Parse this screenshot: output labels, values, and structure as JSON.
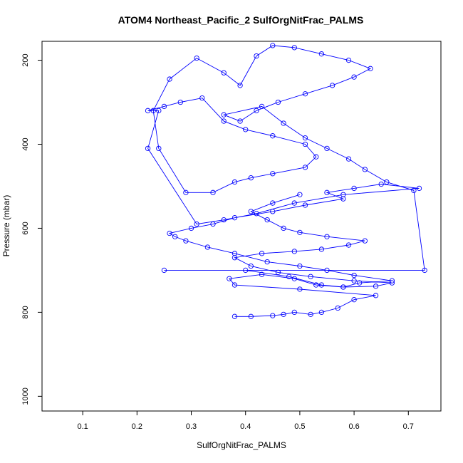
{
  "chart_data": {
    "type": "line",
    "title": "ATOM4 Northeast_Pacific_2 SulfOrgNitFrac_PALMS",
    "xlabel": "SulfOrgNitFrac_PALMS",
    "ylabel": "Pressure (mbar)",
    "xlim": [
      0.025,
      0.76
    ],
    "ylim": [
      1035,
      155
    ],
    "y_inverted": true,
    "x_ticks": [
      0.1,
      0.2,
      0.3,
      0.4,
      0.5,
      0.6,
      0.7
    ],
    "x_tick_labels": [
      "0.1",
      "0.2",
      "0.3",
      "0.4",
      "0.5",
      "0.6",
      "0.7"
    ],
    "y_ticks": [
      200,
      400,
      600,
      800,
      1000
    ],
    "y_tick_labels": [
      "200",
      "400",
      "600",
      "800",
      "1000"
    ],
    "grid": false,
    "legend": "none",
    "series": [
      {
        "color": "#0000ff",
        "marker": "open-circle",
        "x": [
          0.38,
          0.41,
          0.45,
          0.47,
          0.49,
          0.52,
          0.54,
          0.57,
          0.6,
          0.64,
          0.5,
          0.38,
          0.37,
          0.43,
          0.49,
          0.53,
          0.58,
          0.61,
          0.67,
          0.6,
          0.55,
          0.5,
          0.44,
          0.38,
          0.33,
          0.29,
          0.27,
          0.26,
          0.3,
          0.34,
          0.38,
          0.45,
          0.51,
          0.58,
          0.55,
          0.6,
          0.65,
          0.72,
          0.58,
          0.49,
          0.42,
          0.36,
          0.31,
          0.22,
          0.24,
          0.22,
          0.25,
          0.28,
          0.32,
          0.36,
          0.4,
          0.45,
          0.51,
          0.53,
          0.51,
          0.45,
          0.41,
          0.38,
          0.34,
          0.29,
          0.24,
          0.23,
          0.26,
          0.31,
          0.36,
          0.39,
          0.42,
          0.45,
          0.49,
          0.54,
          0.59,
          0.63,
          0.6,
          0.56,
          0.51,
          0.46,
          0.42,
          0.39,
          0.36,
          0.43,
          0.47,
          0.51,
          0.55,
          0.59,
          0.62,
          0.66,
          0.71,
          0.73,
          0.25,
          0.4,
          0.48,
          0.54,
          0.58,
          0.64,
          0.67,
          0.6,
          0.52,
          0.46,
          0.41,
          0.38,
          0.43,
          0.49,
          0.54,
          0.59,
          0.62,
          0.55,
          0.5,
          0.47,
          0.44,
          0.41,
          0.45,
          0.5
        ],
        "y": [
          810,
          810,
          808,
          805,
          800,
          805,
          800,
          790,
          770,
          760,
          745,
          735,
          720,
          710,
          720,
          735,
          740,
          730,
          725,
          712,
          700,
          690,
          680,
          660,
          645,
          630,
          620,
          612,
          600,
          590,
          575,
          560,
          545,
          530,
          515,
          505,
          495,
          505,
          520,
          540,
          565,
          580,
          590,
          410,
          320,
          320,
          310,
          300,
          290,
          345,
          365,
          380,
          400,
          430,
          455,
          470,
          480,
          490,
          515,
          515,
          410,
          320,
          245,
          195,
          230,
          260,
          190,
          165,
          170,
          185,
          200,
          220,
          240,
          260,
          280,
          300,
          320,
          345,
          330,
          310,
          350,
          385,
          410,
          435,
          460,
          490,
          510,
          700,
          700,
          700,
          715,
          735,
          740,
          738,
          730,
          725,
          715,
          705,
          690,
          670,
          660,
          655,
          650,
          640,
          630,
          620,
          610,
          600,
          580,
          560,
          540,
          520
        ]
      }
    ]
  }
}
